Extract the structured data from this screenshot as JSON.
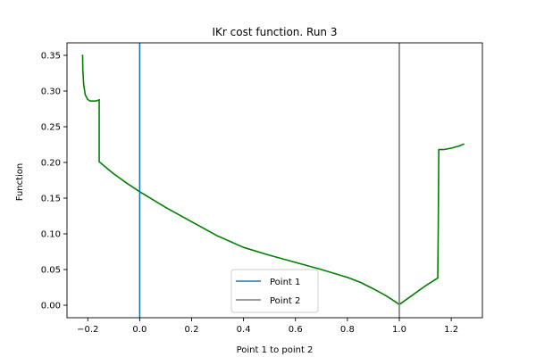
{
  "chart_data": {
    "type": "line",
    "title": "IKr cost function. Run 3",
    "xlabel": "Point 1 to point 2",
    "ylabel": "Function",
    "xlim": [
      -0.28,
      1.32
    ],
    "ylim": [
      -0.0175,
      0.3675
    ],
    "xticks": [
      -0.2,
      0.0,
      0.2,
      0.4,
      0.6,
      0.8,
      1.0,
      1.2
    ],
    "xtick_labels": [
      "−0.2",
      "0.0",
      "0.2",
      "0.4",
      "0.6",
      "0.8",
      "1.0",
      "1.2"
    ],
    "yticks": [
      0.0,
      0.05,
      0.1,
      0.15,
      0.2,
      0.25,
      0.3,
      0.35
    ],
    "ytick_labels": [
      "0.00",
      "0.05",
      "0.10",
      "0.15",
      "0.20",
      "0.25",
      "0.30",
      "0.35"
    ],
    "grid": false,
    "legend_position": "lower-center",
    "series": [
      {
        "color": "#008000",
        "x": [
          -0.22,
          -0.219,
          -0.216,
          -0.21,
          -0.2,
          -0.19,
          -0.18,
          -0.17,
          -0.16,
          -0.156,
          -0.156,
          -0.13,
          -0.1,
          -0.05,
          0.0,
          0.1,
          0.2,
          0.3,
          0.4,
          0.5,
          0.6,
          0.7,
          0.8,
          0.85,
          0.9,
          0.95,
          0.98,
          1.0,
          1.05,
          1.1,
          1.13,
          1.148,
          1.15,
          1.152,
          1.17,
          1.2,
          1.23,
          1.25
        ],
        "y": [
          0.351,
          0.33,
          0.31,
          0.295,
          0.288,
          0.286,
          0.286,
          0.286,
          0.287,
          0.288,
          0.201,
          0.193,
          0.184,
          0.171,
          0.159,
          0.137,
          0.117,
          0.097,
          0.081,
          0.07,
          0.06,
          0.05,
          0.039,
          0.032,
          0.023,
          0.013,
          0.006,
          0.001,
          0.014,
          0.027,
          0.034,
          0.038,
          0.11,
          0.218,
          0.218,
          0.22,
          0.223,
          0.226
        ]
      }
    ],
    "vlines": [
      {
        "name": "Point 1",
        "x": 0.0,
        "color": "#1f77b4"
      },
      {
        "name": "Point 2",
        "x": 1.0,
        "color": "#7f7f7f"
      }
    ]
  }
}
